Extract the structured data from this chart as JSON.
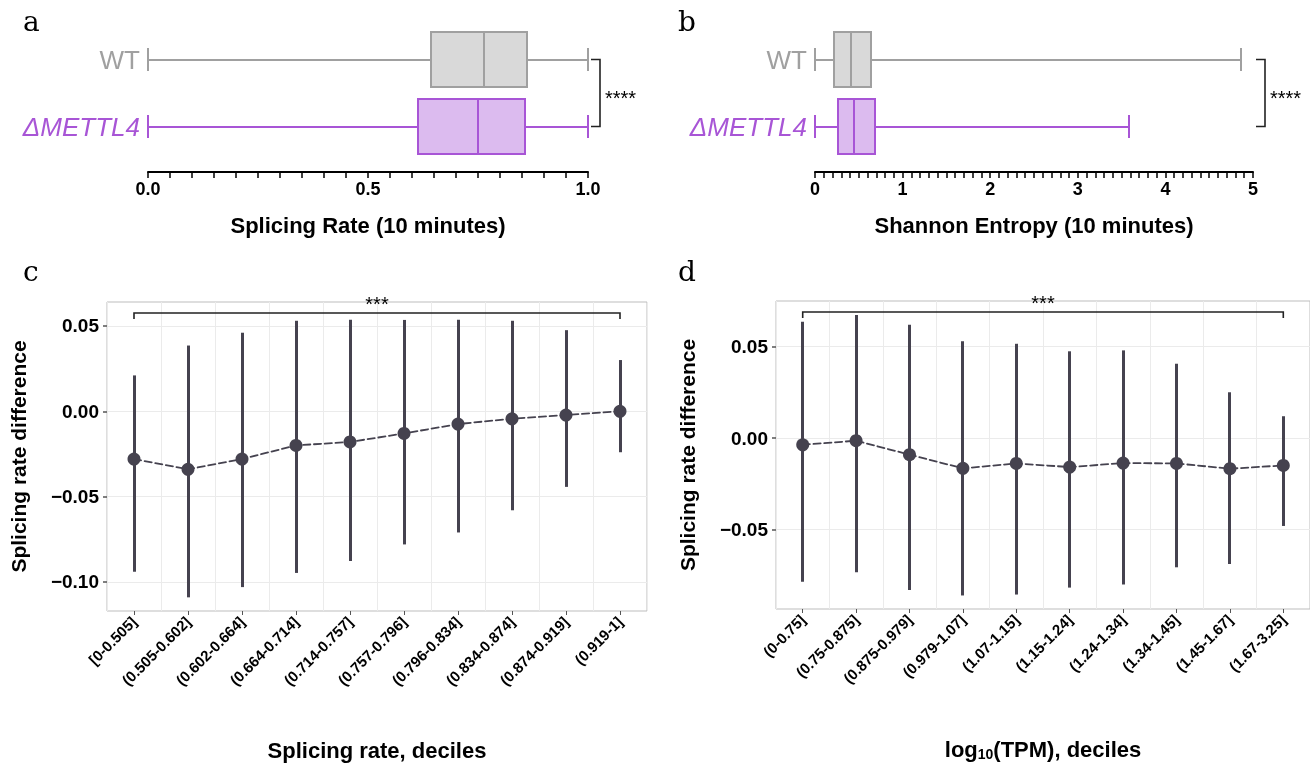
{
  "chart_data": [
    {
      "type": "box",
      "title": "a",
      "orientation": "horizontal",
      "categories": [
        "WT",
        "ΔMETTL4"
      ],
      "colors": [
        "#a0a0a0",
        "#a855d6"
      ],
      "boxes": [
        {
          "low": 0,
          "q1": 0.643,
          "median": 0.763,
          "q3": 0.861,
          "high": 1.0
        },
        {
          "low": 0,
          "q1": 0.614,
          "median": 0.75,
          "q3": 0.857,
          "high": 1.0
        }
      ],
      "xlabel": "Splicing Rate (10 minutes)",
      "xlim": [
        0,
        1
      ],
      "xticks": [
        {
          "value": 0,
          "label": "0.0"
        },
        {
          "value": 0.05,
          "label": null
        },
        {
          "value": 0.1,
          "label": null
        },
        {
          "value": 0.15,
          "label": null
        },
        {
          "value": 0.2,
          "label": null
        },
        {
          "value": 0.25,
          "label": null
        },
        {
          "value": 0.3,
          "label": null
        },
        {
          "value": 0.35,
          "label": null
        },
        {
          "value": 0.4,
          "label": null
        },
        {
          "value": 0.45,
          "label": null
        },
        {
          "value": 0.5,
          "label": "0.5"
        },
        {
          "value": 0.55,
          "label": null
        },
        {
          "value": 0.6,
          "label": null
        },
        {
          "value": 0.65,
          "label": null
        },
        {
          "value": 0.7,
          "label": null
        },
        {
          "value": 0.75,
          "label": null
        },
        {
          "value": 0.8,
          "label": null
        },
        {
          "value": 0.85,
          "label": null
        },
        {
          "value": 0.9,
          "label": null
        },
        {
          "value": 0.95,
          "label": null
        },
        {
          "value": 1,
          "label": "1.0"
        }
      ],
      "annotations": [
        "****"
      ]
    },
    {
      "type": "box",
      "title": "b",
      "orientation": "horizontal",
      "categories": [
        "WT",
        "ΔMETTL4"
      ],
      "colors": [
        "#a0a0a0",
        "#a855d6"
      ],
      "boxes": [
        {
          "low": 0,
          "q1": 0.22,
          "median": 0.41,
          "q3": 0.64,
          "high": 4.86
        },
        {
          "low": 0,
          "q1": 0.26,
          "median": 0.45,
          "q3": 0.69,
          "high": 3.58
        }
      ],
      "xlabel": "Shannon Entropy (10 minutes)",
      "xlim": [
        0,
        5
      ],
      "xticks": [
        0,
        {
          "value": 0.1,
          "label": null
        },
        {
          "value": 0.2,
          "label": null
        },
        {
          "value": 0.3,
          "label": null
        },
        {
          "value": 0.4,
          "label": null
        },
        {
          "value": 0.5,
          "label": null
        },
        {
          "value": 0.6,
          "label": null
        },
        {
          "value": 0.7,
          "label": null
        },
        {
          "value": 0.8,
          "label": null
        },
        {
          "value": 0.9,
          "label": null
        },
        1,
        {
          "value": 1.1,
          "label": null
        },
        {
          "value": 1.2,
          "label": null
        },
        {
          "value": 1.3,
          "label": null
        },
        {
          "value": 1.4,
          "label": null
        },
        {
          "value": 1.5,
          "label": null
        },
        {
          "value": 1.6,
          "label": null
        },
        {
          "value": 1.7,
          "label": null
        },
        {
          "value": 1.8,
          "label": null
        },
        {
          "value": 1.9,
          "label": null
        },
        2,
        {
          "value": 2.1,
          "label": null
        },
        {
          "value": 2.2,
          "label": null
        },
        {
          "value": 2.3,
          "label": null
        },
        {
          "value": 2.4,
          "label": null
        },
        {
          "value": 2.5,
          "label": null
        },
        {
          "value": 2.6,
          "label": null
        },
        {
          "value": 2.7,
          "label": null
        },
        {
          "value": 2.8,
          "label": null
        },
        {
          "value": 2.9,
          "label": null
        },
        3,
        {
          "value": 3.1,
          "label": null
        },
        {
          "value": 3.2,
          "label": null
        },
        {
          "value": 3.3,
          "label": null
        },
        {
          "value": 3.4,
          "label": null
        },
        {
          "value": 3.5,
          "label": null
        },
        {
          "value": 3.6,
          "label": null
        },
        {
          "value": 3.7,
          "label": null
        },
        {
          "value": 3.8,
          "label": null
        },
        {
          "value": 3.9,
          "label": null
        },
        4,
        {
          "value": 4.1,
          "label": null
        },
        {
          "value": 4.2,
          "label": null
        },
        {
          "value": 4.3,
          "label": null
        },
        {
          "value": 4.4,
          "label": null
        },
        {
          "value": 4.5,
          "label": null
        },
        {
          "value": 4.6,
          "label": null
        },
        {
          "value": 4.7,
          "label": null
        },
        {
          "value": 4.8,
          "label": null
        },
        {
          "value": 4.9,
          "label": null
        },
        5
      ],
      "annotations": [
        "****"
      ]
    },
    {
      "type": "line",
      "title": "c",
      "categories": [
        "[0-0.505]",
        "(0.505-0.602]",
        "(0.602-0.664]",
        "(0.664-0.714]",
        "(0.714-0.757]",
        "(0.757-0.796]",
        "(0.796-0.834]",
        "(0.834-0.874]",
        "(0.874-0.919]",
        "(0.919-1]"
      ],
      "values": [
        -0.028,
        -0.034,
        -0.028,
        -0.02,
        -0.018,
        -0.013,
        -0.0075,
        -0.0044,
        -0.0022,
        0.0
      ],
      "errors": [
        [
          -0.094,
          0.021
        ],
        [
          -0.109,
          0.0385
        ],
        [
          -0.103,
          0.046
        ],
        [
          -0.0947,
          0.053
        ],
        [
          -0.0877,
          0.0536
        ],
        [
          -0.078,
          0.0535
        ],
        [
          -0.071,
          0.0536
        ],
        [
          -0.058,
          0.053
        ],
        [
          -0.0443,
          0.0475
        ],
        [
          -0.024,
          0.03
        ]
      ],
      "color": "#45424f",
      "marker": "circle",
      "line_style": "dashed",
      "grid": true,
      "xlabel": "Splicing rate, deciles",
      "ylabel": "Splicing rate difference",
      "ylim": [
        -0.117,
        0.064
      ],
      "yticks": [
        {
          "value": -0.1,
          "label": "−0.10"
        },
        {
          "value": -0.05,
          "label": "−0.05"
        },
        {
          "value": 0,
          "label": "0.00"
        },
        {
          "value": 0.05,
          "label": "0.05"
        }
      ],
      "annotations": [
        "***"
      ]
    },
    {
      "type": "line",
      "title": "d",
      "categories": [
        "(0-0.75]",
        "(0.75-0.875]",
        "(0.875-0.979]",
        "(0.979-1.07]",
        "(1.07-1.15]",
        "(1.15-1.24]",
        "(1.24-1.34]",
        "(1.34-1.45]",
        "(1.45-1.67]",
        "(1.67-3.25]"
      ],
      "values": [
        -0.0036,
        -0.0014,
        -0.009,
        -0.0165,
        -0.0138,
        -0.0158,
        -0.0136,
        -0.0138,
        -0.0167,
        -0.0149
      ],
      "errors": [
        [
          -0.0785,
          0.0636
        ],
        [
          -0.0733,
          0.0674
        ],
        [
          -0.083,
          0.062
        ],
        [
          -0.086,
          0.053
        ],
        [
          -0.0855,
          0.0516
        ],
        [
          -0.0817,
          0.0475
        ],
        [
          -0.08,
          0.048
        ],
        [
          -0.0706,
          0.0407
        ],
        [
          -0.0688,
          0.0251
        ],
        [
          -0.048,
          0.012
        ]
      ],
      "color": "#45424f",
      "marker": "circle",
      "line_style": "dashed",
      "grid": true,
      "xlabel": "log$_{10}$(TPM), deciles",
      "ylabel": "Splicing rate difference",
      "ylim": [
        -0.0934,
        0.075
      ],
      "yticks": [
        {
          "value": -0.05,
          "label": "−0.05"
        },
        {
          "value": 0,
          "label": "0.00"
        },
        {
          "value": 0.05,
          "label": "0.05"
        }
      ],
      "annotations": [
        "***"
      ]
    }
  ]
}
